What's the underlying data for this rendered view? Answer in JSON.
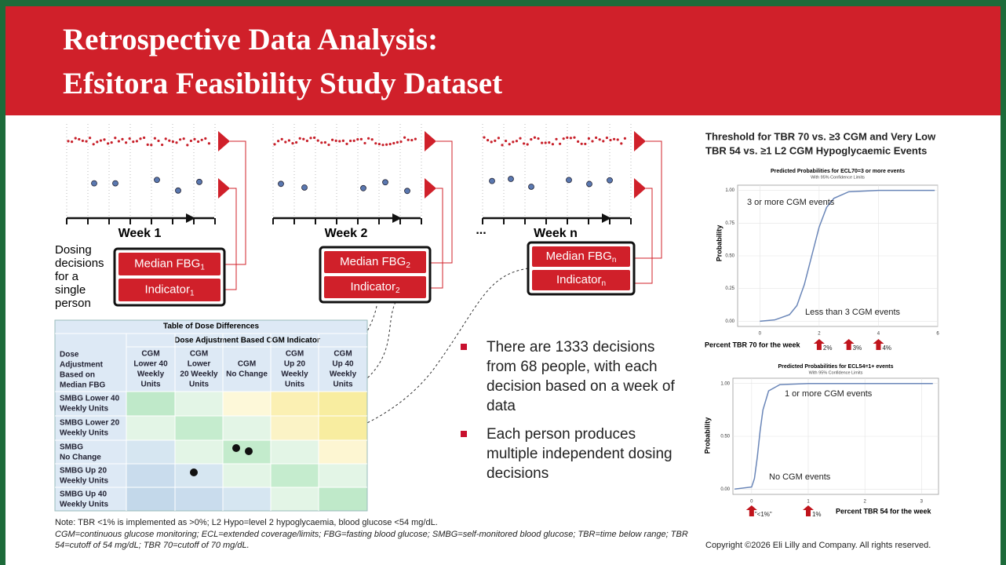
{
  "header": {
    "title_lines": [
      "Retrospective Data Analysis:",
      "Efsitora Feasibility Study Dataset"
    ]
  },
  "diagram": {
    "weeks": [
      {
        "label": "Week 1",
        "fbg": "Median FBG",
        "fbg_sub": "1",
        "indicator": "Indicator",
        "indicator_sub": "1"
      },
      {
        "label": "Week 2",
        "fbg": "Median FBG",
        "fbg_sub": "2",
        "indicator": "Indicator",
        "indicator_sub": "2"
      },
      {
        "label": "Week n",
        "fbg": "Median FBG",
        "fbg_sub": "n",
        "indicator": "Indicator",
        "indicator_sub": "n"
      }
    ],
    "ellipsis": "...",
    "person_label_lines": [
      "Dosing",
      "decisions",
      "for a",
      "single",
      "person"
    ]
  },
  "table": {
    "title": "Table of Dose Differences",
    "col_group": "Dose Adjustment Based CGM Indicator",
    "row_header_lines": [
      "Dose",
      "Adjustment",
      "Based on",
      "Median FBG"
    ],
    "columns": [
      [
        "CGM",
        "Lower 40",
        "Weekly",
        "Units"
      ],
      [
        "CGM",
        "Lower",
        "20 Weekly",
        "Units"
      ],
      [
        "CGM",
        "No Change"
      ],
      [
        "CGM",
        "Up 20",
        "Weekly",
        "Units"
      ],
      [
        "CGM",
        "Up 40",
        "Weekly",
        "Units"
      ]
    ],
    "rows": [
      [
        "SMBG Lower 40",
        "Weekly Units"
      ],
      [
        "SMBG Lower 20",
        "Weekly Units"
      ],
      [
        "SMBG",
        "No Change"
      ],
      [
        "SMBG Up 20",
        "Weekly Units"
      ],
      [
        "SMBG Up 40",
        "Weekly Units"
      ]
    ],
    "cell_colors": [
      [
        "#bfe9c9",
        "#e3f5e6",
        "#fdf8d9",
        "#fbf0b3",
        "#f8eda0"
      ],
      [
        "#e3f5e6",
        "#c5ecce",
        "#e3f5e6",
        "#fbf3c6",
        "#f8eda0"
      ],
      [
        "#d6e6f1",
        "#e3f5e6",
        "#c3ebcc",
        "#e3f5e6",
        "#fdf6d2"
      ],
      [
        "#c9dced",
        "#d6e6f1",
        "#e3f5e6",
        "#c5ecce",
        "#e3f5e6"
      ],
      [
        "#c3d8ea",
        "#c9dced",
        "#d6e6f1",
        "#e3f5e6",
        "#bfe9c9"
      ]
    ]
  },
  "bullets": [
    "There are 1333 decisions from 68 people, with each decision based on a week of data",
    "Each person produces multiple independent dosing decisions"
  ],
  "charts_heading_lines": [
    "Threshold for TBR 70 vs. ≥3 CGM and Very Low",
    "TBR 54 vs. ≥1 L2 CGM Hypoglycaemic Events"
  ],
  "chart_data": [
    {
      "type": "line",
      "title": "Predicted Probabilities for ECL70=3 or more events",
      "subtitle": "With 95% Confidence Limits",
      "y_label": "Probability",
      "x_label": "Percent TBR 70 for the week",
      "x": [
        0,
        0.5,
        1,
        1.25,
        1.5,
        1.75,
        2,
        2.25,
        2.5,
        3,
        4,
        5,
        5.9
      ],
      "series": [
        {
          "color": "#6a86b8",
          "values": [
            0,
            0.01,
            0.05,
            0.12,
            0.28,
            0.5,
            0.72,
            0.87,
            0.94,
            0.99,
            1,
            1,
            1
          ]
        }
      ],
      "xlim": [
        -0.75,
        6
      ],
      "ylim": [
        -0.04,
        1.04
      ],
      "xticks": [
        0,
        2,
        4,
        6
      ],
      "yticks": [
        {
          "value": 0,
          "label": "0.00"
        },
        {
          "value": 0.25,
          "label": "0.25"
        },
        {
          "value": 0.5,
          "label": "0.50"
        },
        {
          "value": 0.75,
          "label": "0.75"
        },
        {
          "value": 1,
          "label": "1.00"
        }
      ],
      "grid": true,
      "annotations": [
        "3 or more CGM events",
        "Less than 3 CGM events"
      ],
      "thresholds": [
        {
          "value": 2,
          "label": "2%"
        },
        {
          "value": 3,
          "label": "3%"
        },
        {
          "value": 4,
          "label": "4%"
        }
      ],
      "threshold_color": "#c0141c"
    },
    {
      "type": "line",
      "title": "Predicted Probabilities for ECL54=1+ events",
      "subtitle": "With 95% Confidence Limits",
      "y_label": "Probability",
      "x_label": "Percent TBR 54 for the week",
      "x": [
        -0.3,
        0,
        0.05,
        0.1,
        0.15,
        0.2,
        0.3,
        0.5,
        1,
        2,
        3.2
      ],
      "series": [
        {
          "color": "#6a86b8",
          "values": [
            0,
            0.02,
            0.1,
            0.3,
            0.55,
            0.75,
            0.93,
            0.99,
            1,
            1,
            1
          ]
        }
      ],
      "xlim": [
        -0.33,
        3.3
      ],
      "ylim": [
        -0.05,
        1.05
      ],
      "xticks": [
        0,
        1,
        2,
        3
      ],
      "yticks": [
        {
          "value": 0,
          "label": "0.00"
        },
        {
          "value": 0.5,
          "label": "0.50"
        },
        {
          "value": 1,
          "label": "1.00"
        }
      ],
      "grid": true,
      "annotations": [
        "1 or more CGM events",
        "No CGM events"
      ],
      "origin_label": "\"<1%\"",
      "thresholds": [
        {
          "value": 1,
          "label": "1%"
        }
      ],
      "threshold_color": "#c0141c"
    }
  ],
  "footnotes": {
    "note": "Note: TBR <1% is implemented as >0%; L2 Hypo=level 2 hypoglycaemia, blood glucose <54 mg/dL.",
    "abbreviations": "CGM=continuous glucose monitoring; ECL=extended coverage/limits; FBG=fasting blood glucose; SMBG=self-monitored blood glucose; TBR=time below range; TBR 54=cutoff of 54 mg/dL; TBR 70=cutoff of 70 mg/dL."
  },
  "copyright": "Copyright ©2026 Eli Lilly and Company. All rights reserved."
}
